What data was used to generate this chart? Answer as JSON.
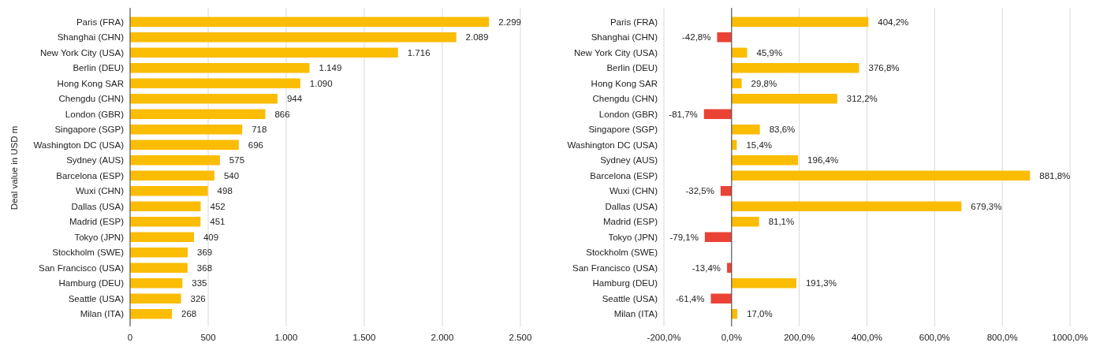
{
  "chart_data": [
    {
      "type": "bar",
      "orientation": "horizontal",
      "ylabel": "Deal value in USD m",
      "categories": [
        "Paris (FRA)",
        "Shanghai (CHN)",
        "New York City (USA)",
        "Berlin (DEU)",
        "Hong Kong SAR",
        "Chengdu (CHN)",
        "London (GBR)",
        "Singapore (SGP)",
        "Washington DC (USA)",
        "Sydney (AUS)",
        "Barcelona (ESP)",
        "Wuxi (CHN)",
        "Dallas (USA)",
        "Madrid (ESP)",
        "Tokyo (JPN)",
        "Stockholm (SWE)",
        "San Francisco (USA)",
        "Hamburg (DEU)",
        "Seattle (USA)",
        "Milan (ITA)"
      ],
      "values": [
        2299,
        2089,
        1716,
        1149,
        1090,
        944,
        866,
        718,
        696,
        575,
        540,
        498,
        452,
        451,
        409,
        369,
        368,
        335,
        326,
        268
      ],
      "value_labels": [
        "2.299",
        "2.089",
        "1.716",
        "1.149",
        "1.090",
        "944",
        "866",
        "718",
        "696",
        "575",
        "540",
        "498",
        "452",
        "451",
        "409",
        "369",
        "368",
        "335",
        "326",
        "268"
      ],
      "color": "#fbbc04",
      "xlim": [
        0,
        2500
      ],
      "xticks": [
        0,
        500,
        {
          "value": 1000,
          "label": "1.000"
        },
        {
          "value": 1500,
          "label": "1.500"
        },
        {
          "value": 2000,
          "label": "2.000"
        },
        {
          "value": 2500,
          "label": "2.500"
        }
      ],
      "grid": "x"
    },
    {
      "type": "bar",
      "orientation": "horizontal",
      "categories": [
        "Paris (FRA)",
        "Shanghai (CHN)",
        "New York City (USA)",
        "Berlin (DEU)",
        "Hong Kong SAR",
        "Chengdu (CHN)",
        "London (GBR)",
        "Singapore (SGP)",
        "Washington DC (USA)",
        "Sydney (AUS)",
        "Barcelona (ESP)",
        "Wuxi (CHN)",
        "Dallas (USA)",
        "Madrid (ESP)",
        "Tokyo (JPN)",
        "Stockholm (SWE)",
        "San Francisco (USA)",
        "Hamburg (DEU)",
        "Seattle (USA)",
        "Milan (ITA)"
      ],
      "values": [
        404.2,
        -42.8,
        45.9,
        376.8,
        29.8,
        312.2,
        -81.7,
        83.6,
        15.4,
        196.4,
        881.8,
        -32.5,
        679.3,
        81.1,
        -79.1,
        null,
        -13.4,
        191.3,
        -61.4,
        17.0
      ],
      "value_labels": [
        "404,2%",
        "-42,8%",
        "45,9%",
        "376,8%",
        "29,8%",
        "312,2%",
        "-81,7%",
        "83,6%",
        "15,4%",
        "196,4%",
        "881,8%",
        "-32,5%",
        "679,3%",
        "81,1%",
        "-79,1%",
        null,
        "-13,4%",
        "191,3%",
        "-61,4%",
        "17,0%"
      ],
      "colors": [
        "#fbbc04",
        "#ea4335",
        "#fbbc04",
        "#fbbc04",
        "#fbbc04",
        "#fbbc04",
        "#ea4335",
        "#fbbc04",
        "#fbbc04",
        "#fbbc04",
        "#fbbc04",
        "#ea4335",
        "#fbbc04",
        "#fbbc04",
        "#ea4335",
        null,
        "#ea4335",
        "#fbbc04",
        "#ea4335",
        "#fbbc04"
      ],
      "xlim": [
        -200,
        1000
      ],
      "xticks": [
        {
          "value": -200,
          "label": "-200,0%"
        },
        {
          "value": 0,
          "label": "0,0%"
        },
        {
          "value": 200,
          "label": "200,0%"
        },
        {
          "value": 400,
          "label": "400,0%"
        },
        {
          "value": 600,
          "label": "600,0%"
        },
        {
          "value": 800,
          "label": "800,0%"
        },
        {
          "value": 1000,
          "label": "1000,0%"
        }
      ],
      "grid": "x"
    }
  ]
}
